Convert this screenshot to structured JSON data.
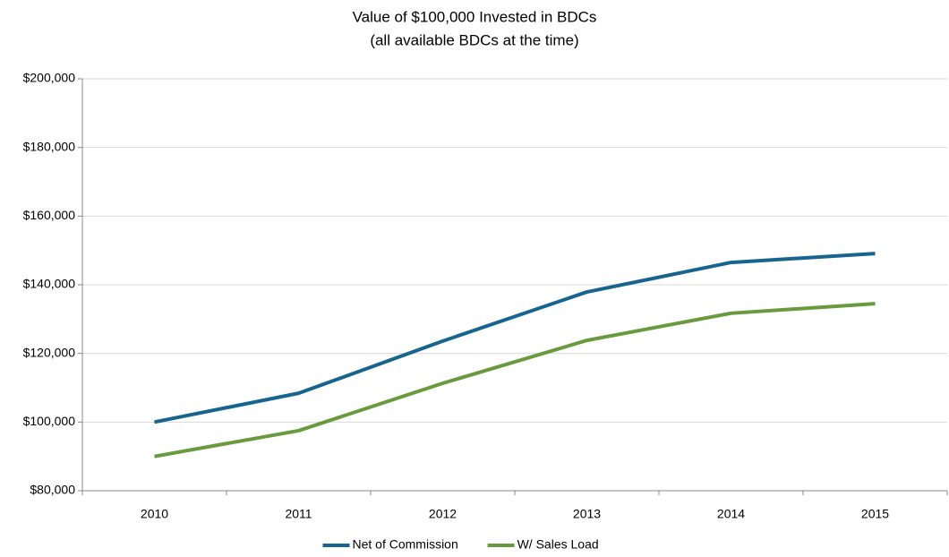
{
  "chart_data": {
    "type": "line",
    "title": "Value of $100,000 Invested in BDCs",
    "subtitle": "(all available BDCs at the time)",
    "categories": [
      "2010",
      "2011",
      "2012",
      "2013",
      "2014",
      "2015"
    ],
    "series": [
      {
        "name": "Net of Commission",
        "color": "#17658f",
        "values": [
          100000,
          108400,
          123600,
          137900,
          146500,
          149100
        ]
      },
      {
        "name": "W/ Sales Load",
        "color": "#6a9a3e",
        "values": [
          90000,
          97500,
          111300,
          123800,
          131700,
          134500
        ]
      }
    ],
    "ylim": [
      80000,
      200000
    ],
    "yticks": [
      {
        "value": 80000,
        "label": "$80,000"
      },
      {
        "value": 100000,
        "label": "$100,000"
      },
      {
        "value": 120000,
        "label": "$120,000"
      },
      {
        "value": 140000,
        "label": "$140,000"
      },
      {
        "value": 160000,
        "label": "$160,000"
      },
      {
        "value": 180000,
        "label": "$180,000"
      },
      {
        "value": 200000,
        "label": "$200,000"
      }
    ],
    "grid": true,
    "legend": "bottom"
  }
}
